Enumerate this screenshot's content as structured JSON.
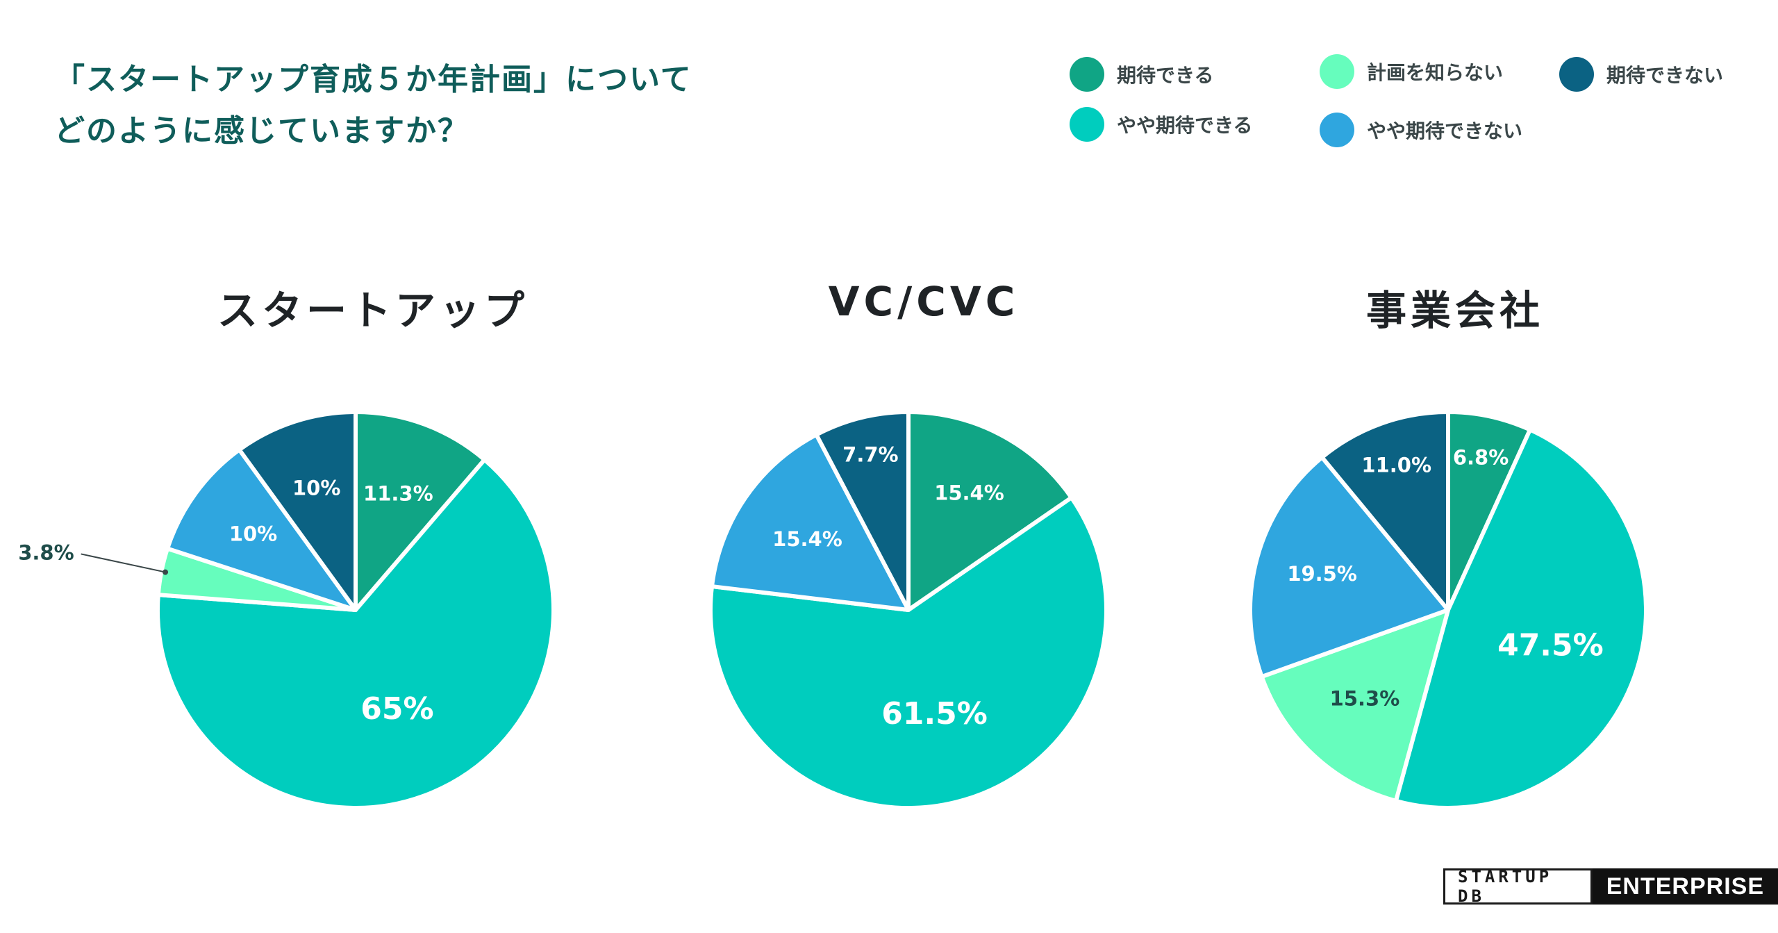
{
  "title": {
    "line1": "「スタートアップ育成５か年計画」について",
    "line2": "どのように感じていますか？"
  },
  "colors": {
    "kitai_dekiru": "#10a585",
    "yaya_kitai_dekiru": "#00cdbe",
    "keikaku_shiranai": "#66fdbd",
    "yaya_kitai_dekinai": "#2fa6df",
    "kitai_dekinai": "#0b6283"
  },
  "legend": [
    {
      "label": "期待できる",
      "color": "#10a585"
    },
    {
      "label": "計画を知らない",
      "color": "#66fdbd"
    },
    {
      "label": "期待できない",
      "color": "#0b6283"
    },
    {
      "label": "やや期待できる",
      "color": "#00cdbe"
    },
    {
      "label": "やや期待できない",
      "color": "#2fa6df"
    }
  ],
  "chart_data": [
    {
      "type": "pie",
      "title": "スタートアップ",
      "categories": [
        "期待できる",
        "やや期待できる",
        "計画を知らない",
        "やや期待できない",
        "期待できない"
      ],
      "values": [
        11.3,
        65,
        3.8,
        10,
        10
      ],
      "labels": [
        "11.3%",
        "65%",
        "3.8%",
        "10%",
        "10%"
      ]
    },
    {
      "type": "pie",
      "title": "VC/CVC",
      "categories": [
        "期待できる",
        "やや期待できる",
        "やや期待できない",
        "期待できない"
      ],
      "values": [
        15.4,
        61.5,
        15.4,
        7.7
      ],
      "labels": [
        "15.4%",
        "61.5%",
        "15.4%",
        "7.7%"
      ]
    },
    {
      "type": "pie",
      "title": "事業会社",
      "categories": [
        "期待できる",
        "やや期待できる",
        "計画を知らない",
        "やや期待できない",
        "期待できない"
      ],
      "values": [
        6.8,
        47.5,
        15.3,
        19.5,
        11.0
      ],
      "labels": [
        "6.8%",
        "47.5%",
        "15.3%",
        "19.5%",
        "11.0%"
      ]
    }
  ],
  "logo": {
    "left": "STARTUP DB",
    "right": "ENTERPRISE"
  }
}
